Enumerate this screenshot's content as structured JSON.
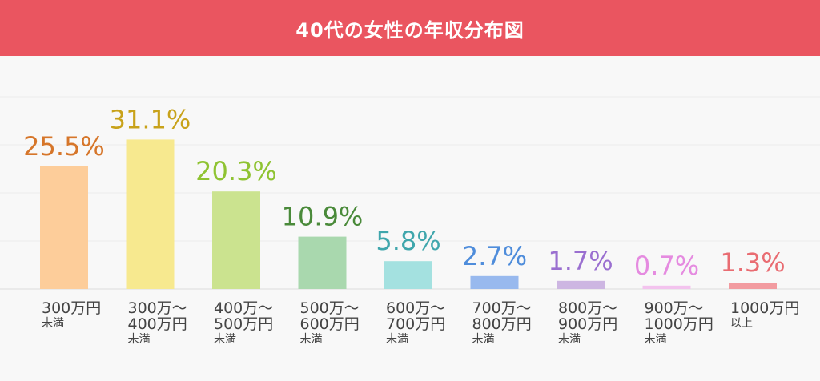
{
  "header": {
    "title": "40代の女性の年収分布図",
    "bg_color": "#ea5560"
  },
  "chart_data": {
    "type": "bar",
    "title": "40代の女性の年収分布図",
    "categories": [
      [
        "300万円",
        "未満"
      ],
      [
        "300万～",
        "400万円",
        "未満"
      ],
      [
        "400万～",
        "500万円",
        "未満"
      ],
      [
        "500万～",
        "600万円",
        "未満"
      ],
      [
        "600万～",
        "700万円",
        "未満"
      ],
      [
        "700万～",
        "800万円",
        "未満"
      ],
      [
        "800万～",
        "900万円",
        "未満"
      ],
      [
        "900万～",
        "1000万円",
        "未満"
      ],
      [
        "1000万円",
        "以上"
      ]
    ],
    "values": [
      25.5,
      31.1,
      20.3,
      10.9,
      5.8,
      2.7,
      1.7,
      0.7,
      1.3
    ],
    "value_labels": [
      "25.5%",
      "31.1%",
      "20.3%",
      "10.9%",
      "5.8%",
      "2.7%",
      "1.7%",
      "0.7%",
      "1.3%"
    ],
    "bar_colors": [
      "#fdcd9a",
      "#f7e98f",
      "#cbe38f",
      "#a9d8ae",
      "#a4e1e0",
      "#98b9ee",
      "#cdb6e2",
      "#f3c3ee",
      "#f29ba0"
    ],
    "label_colors": [
      "#d6762a",
      "#c8a21a",
      "#8fc332",
      "#4a8a3a",
      "#3fa6ac",
      "#4f8ddb",
      "#9a6fd0",
      "#e58be0",
      "#e96c72"
    ],
    "ylim": [
      0,
      40
    ],
    "grid": true,
    "xlabel": "",
    "ylabel": ""
  }
}
